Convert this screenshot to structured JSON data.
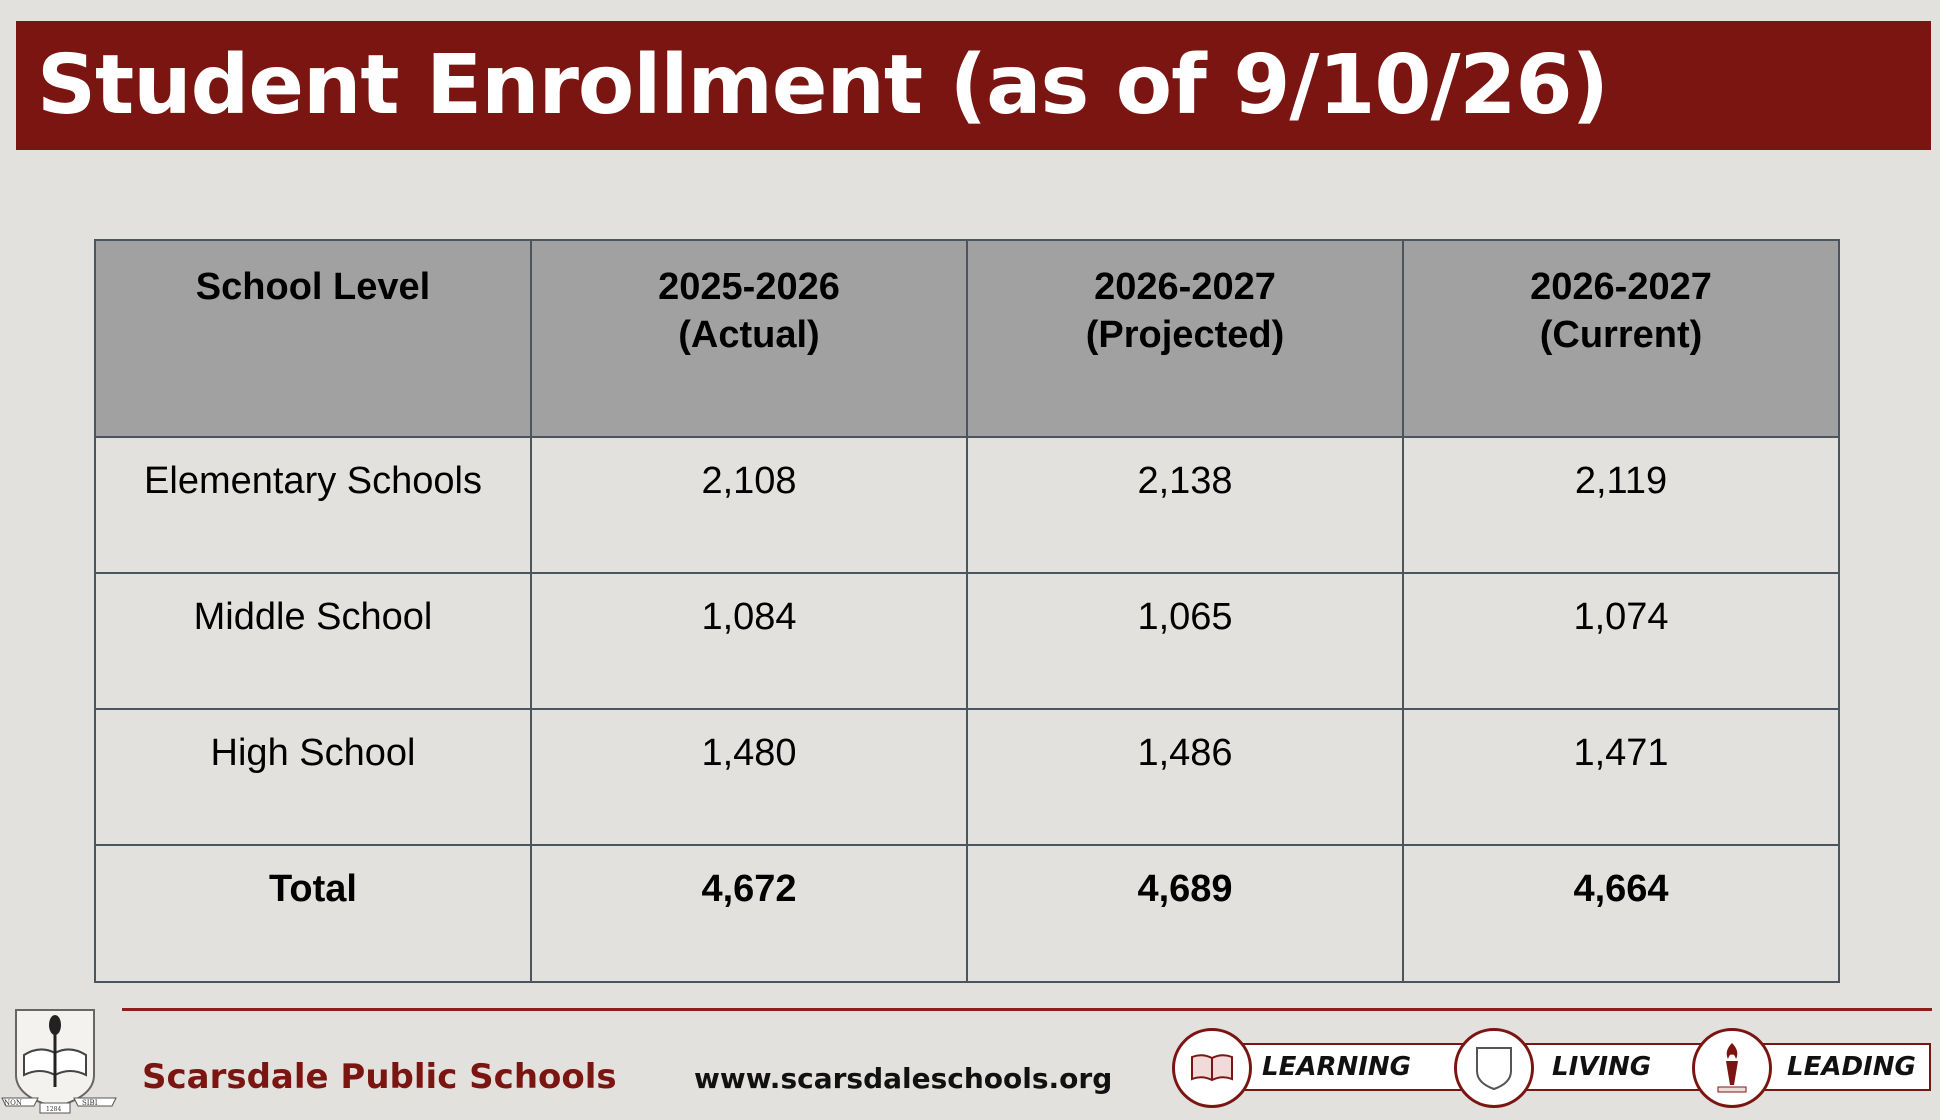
{
  "title": "Student Enrollment (as of 9/10/26)",
  "table": {
    "headers": [
      [
        "School Level"
      ],
      [
        "2025-2026",
        "(Actual)"
      ],
      [
        "2026-2027",
        "(Projected)"
      ],
      [
        "2026-2027",
        "(Current)"
      ]
    ],
    "rows": [
      [
        "Elementary Schools",
        "2,108",
        "2,138",
        "2,119"
      ],
      [
        "Middle School",
        "1,084",
        "1,065",
        "1,074"
      ],
      [
        "High School",
        "1,480",
        "1,486",
        "1,471"
      ]
    ],
    "total": [
      "Total",
      "4,672",
      "4,689",
      "4,664"
    ]
  },
  "footer": {
    "org_name": "Scarsdale Public Schools",
    "website": "www.scarsdaleschools.org",
    "seal_text": [
      "NON",
      "1284",
      "SIBI"
    ],
    "motto": [
      "LEARNING",
      "LIVING",
      "LEADING"
    ],
    "colors": {
      "brand": "#7b1512",
      "header_fill": "#a1a1a1",
      "background": "#e3e1de"
    }
  }
}
